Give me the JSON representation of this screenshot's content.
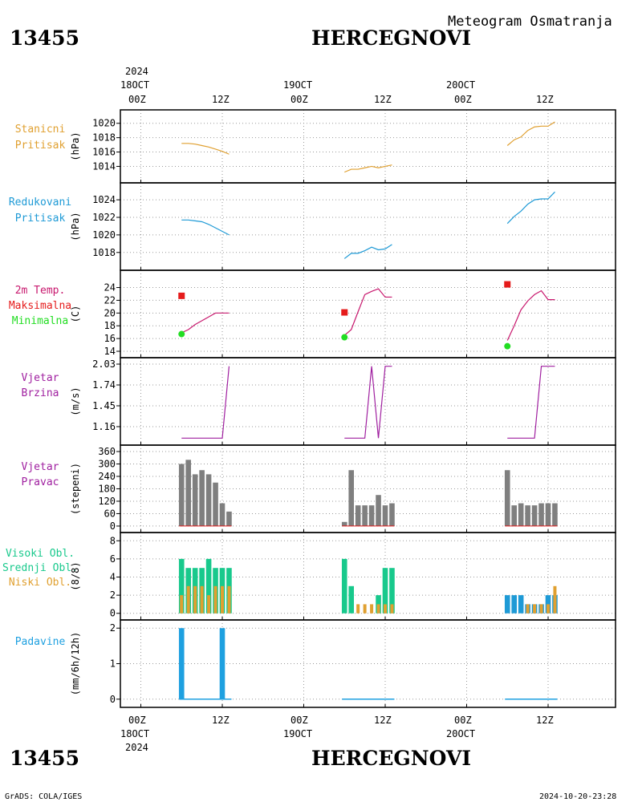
{
  "header": {
    "station_id": "13455",
    "station_name": "HERCEGNOVI",
    "subtitle": "Meteogram Osmatranja",
    "footer_left": "GrADS: COLA/IGES",
    "footer_right": "2024-10-20-23:28"
  },
  "time_axis": {
    "year": "2024",
    "days": [
      {
        "date": "18OCT",
        "hours": [
          "00Z",
          "12Z"
        ]
      },
      {
        "date": "19OCT",
        "hours": [
          "00Z",
          "12Z"
        ]
      },
      {
        "date": "20OCT",
        "hours": [
          "00Z",
          "12Z"
        ]
      }
    ]
  },
  "colors": {
    "pressure": "#e0a030",
    "reduced_pressure": "#1e9ad6",
    "temp": "#c8186e",
    "tmax": "#e51b1b",
    "tmin": "#22dd22",
    "wind": "#a020a0",
    "bars": "#7f7f7f",
    "high_cloud": "#18c98c",
    "mid_cloud": "#1e9ad6",
    "low_cloud": "#e0a030",
    "precip": "#1ea0e0"
  },
  "chart_data": [
    {
      "type": "line",
      "panel": "station_pressure",
      "label_lines": [
        "Stanicni",
        "Pritisak"
      ],
      "ylabel": "(hPa)",
      "yticks": [
        1014,
        1016,
        1018,
        1020
      ],
      "ylim": [
        1012.6,
        1021.2
      ],
      "x_hours": [
        9,
        10,
        11,
        12,
        13,
        14,
        15,
        16,
        17,
        18,
        19,
        20,
        21,
        22
      ],
      "segments": [
        {
          "x": [
            6,
            7,
            8,
            9,
            10,
            11,
            12,
            13
          ],
          "y": [
            1017.2,
            1017.2,
            1017.1,
            1016.9,
            1016.7,
            1016.4,
            1016.1,
            1015.7
          ]
        },
        {
          "x": [
            30,
            31,
            32,
            33,
            34,
            35,
            36,
            37
          ],
          "y": [
            1013.2,
            1013.6,
            1013.6,
            1013.8,
            1014.0,
            1013.8,
            1014.0,
            1014.2
          ]
        },
        {
          "x": [
            54,
            55,
            56,
            57,
            58,
            59,
            60,
            61
          ],
          "y": [
            1016.9,
            1017.7,
            1018.1,
            1019.0,
            1019.5,
            1019.6,
            1019.6,
            1020.2
          ]
        }
      ]
    },
    {
      "type": "line",
      "panel": "reduced_pressure",
      "label_lines": [
        "Redukovani",
        "Pritisak"
      ],
      "ylabel": "(hPa)",
      "yticks": [
        1018,
        1020,
        1022,
        1024
      ],
      "ylim": [
        1016.7,
        1025.2
      ],
      "segments": [
        {
          "x": [
            6,
            7,
            8,
            9,
            10,
            11,
            12,
            13
          ],
          "y": [
            1021.7,
            1021.7,
            1021.6,
            1021.5,
            1021.2,
            1020.8,
            1020.4,
            1020.0
          ]
        },
        {
          "x": [
            30,
            31,
            32,
            33,
            34,
            35,
            36,
            37
          ],
          "y": [
            1017.3,
            1017.9,
            1017.9,
            1018.2,
            1018.6,
            1018.3,
            1018.4,
            1018.9
          ]
        },
        {
          "x": [
            54,
            55,
            56,
            57,
            58,
            59,
            60,
            61
          ],
          "y": [
            1021.3,
            1022.1,
            1022.7,
            1023.5,
            1024.0,
            1024.1,
            1024.1,
            1024.9
          ]
        }
      ]
    },
    {
      "type": "line",
      "panel": "temperature",
      "label_lines": [
        "2m Temp.",
        "Maksimalna",
        "Minimalna"
      ],
      "ylabel": "(C)",
      "yticks": [
        14,
        16,
        18,
        20,
        22,
        24
      ],
      "ylim": [
        14,
        25.2
      ],
      "segments": [
        {
          "x": [
            6,
            7,
            8,
            9,
            10,
            11,
            12,
            13
          ],
          "y": [
            16.9,
            17.4,
            18.2,
            18.8,
            19.4,
            20.0,
            20.0,
            20.0
          ]
        },
        {
          "x": [
            30,
            31,
            32,
            33,
            34,
            35,
            36,
            37
          ],
          "y": [
            16.5,
            17.4,
            20.2,
            22.9,
            23.4,
            23.8,
            22.5,
            22.5
          ]
        },
        {
          "x": [
            54,
            55,
            56,
            57,
            58,
            59,
            60,
            61
          ],
          "y": [
            15.7,
            18.0,
            20.5,
            21.9,
            22.9,
            23.5,
            22.1,
            22.1
          ]
        }
      ],
      "tmax": [
        {
          "x": 6,
          "y": 22.7
        },
        {
          "x": 30,
          "y": 20.1
        },
        {
          "x": 54,
          "y": 24.5
        }
      ],
      "tmin": [
        {
          "x": 6,
          "y": 16.7
        },
        {
          "x": 30,
          "y": 16.2
        },
        {
          "x": 54,
          "y": 14.8
        }
      ]
    },
    {
      "type": "line",
      "panel": "wind_speed",
      "label_lines": [
        "Vjetar",
        "Brzina"
      ],
      "ylabel": "(m/s)",
      "yticks": [
        1.16,
        1.45,
        1.74,
        2.03
      ],
      "ylim": [
        0.97,
        2.03
      ],
      "segments": [
        {
          "x": [
            6,
            7,
            8,
            9,
            10,
            11,
            12,
            13
          ],
          "y": [
            1.0,
            1.0,
            1.0,
            1.0,
            1.0,
            1.0,
            1.0,
            2.0
          ]
        },
        {
          "x": [
            30,
            31,
            32,
            33,
            34,
            35,
            36,
            37
          ],
          "y": [
            1.0,
            1.0,
            1.0,
            1.0,
            2.0,
            1.0,
            2.0,
            2.0
          ]
        },
        {
          "x": [
            54,
            55,
            56,
            57,
            58,
            59,
            60,
            61
          ],
          "y": [
            1.0,
            1.0,
            1.0,
            1.0,
            1.0,
            2.0,
            2.0,
            2.0
          ]
        }
      ]
    },
    {
      "type": "bar",
      "panel": "wind_direction",
      "label_lines": [
        "Vjetar",
        "Pravac"
      ],
      "ylabel": "(stepeni)",
      "yticks": [
        0,
        60,
        120,
        180,
        240,
        300,
        360
      ],
      "ylim": [
        -8,
        360
      ],
      "bars": [
        {
          "x": 6,
          "y": 300
        },
        {
          "x": 7,
          "y": 320
        },
        {
          "x": 8,
          "y": 250
        },
        {
          "x": 9,
          "y": 270
        },
        {
          "x": 10,
          "y": 250
        },
        {
          "x": 11,
          "y": 210
        },
        {
          "x": 12,
          "y": 110
        },
        {
          "x": 13,
          "y": 70
        },
        {
          "x": 30,
          "y": 20
        },
        {
          "x": 31,
          "y": 270
        },
        {
          "x": 32,
          "y": 100
        },
        {
          "x": 33,
          "y": 100
        },
        {
          "x": 34,
          "y": 100
        },
        {
          "x": 35,
          "y": 150
        },
        {
          "x": 36,
          "y": 100
        },
        {
          "x": 37,
          "y": 110
        },
        {
          "x": 54,
          "y": 270
        },
        {
          "x": 55,
          "y": 100
        },
        {
          "x": 56,
          "y": 110
        },
        {
          "x": 57,
          "y": 100
        },
        {
          "x": 58,
          "y": 100
        },
        {
          "x": 59,
          "y": 110
        },
        {
          "x": 60,
          "y": 110
        },
        {
          "x": 61,
          "y": 110
        }
      ]
    },
    {
      "type": "bar",
      "panel": "clouds",
      "label_lines": [
        "Visoki Obl.",
        "Srednji Obl.",
        "Niski Obl."
      ],
      "ylabel": "(8/8)",
      "yticks": [
        0,
        2,
        4,
        6,
        8
      ],
      "ylim": [
        -0.2,
        8.2
      ],
      "high": [
        {
          "x": 6,
          "y": 6
        },
        {
          "x": 7,
          "y": 5
        },
        {
          "x": 8,
          "y": 5
        },
        {
          "x": 9,
          "y": 5
        },
        {
          "x": 10,
          "y": 6
        },
        {
          "x": 11,
          "y": 5
        },
        {
          "x": 12,
          "y": 5
        },
        {
          "x": 13,
          "y": 5
        },
        {
          "x": 30,
          "y": 6
        },
        {
          "x": 31,
          "y": 3
        },
        {
          "x": 35,
          "y": 2
        },
        {
          "x": 36,
          "y": 5
        },
        {
          "x": 37,
          "y": 5
        }
      ],
      "mid": [
        {
          "x": 54,
          "y": 2
        },
        {
          "x": 55,
          "y": 2
        },
        {
          "x": 56,
          "y": 2
        },
        {
          "x": 57,
          "y": 1
        },
        {
          "x": 58,
          "y": 1
        },
        {
          "x": 59,
          "y": 1
        },
        {
          "x": 60,
          "y": 2
        },
        {
          "x": 61,
          "y": 2
        }
      ],
      "low": [
        {
          "x": 6,
          "y": 2
        },
        {
          "x": 7,
          "y": 3
        },
        {
          "x": 8,
          "y": 3
        },
        {
          "x": 9,
          "y": 3
        },
        {
          "x": 10,
          "y": 2
        },
        {
          "x": 11,
          "y": 3
        },
        {
          "x": 12,
          "y": 3
        },
        {
          "x": 13,
          "y": 3
        },
        {
          "x": 32,
          "y": 1
        },
        {
          "x": 33,
          "y": 1
        },
        {
          "x": 34,
          "y": 1
        },
        {
          "x": 35,
          "y": 1
        },
        {
          "x": 36,
          "y": 1
        },
        {
          "x": 37,
          "y": 1
        },
        {
          "x": 57,
          "y": 1
        },
        {
          "x": 58,
          "y": 1
        },
        {
          "x": 59,
          "y": 1
        },
        {
          "x": 60,
          "y": 1
        },
        {
          "x": 61,
          "y": 3
        }
      ]
    },
    {
      "type": "bar",
      "panel": "precipitation",
      "label_lines": [
        "Padavine"
      ],
      "ylabel": "(mm/6h/12h)",
      "yticks": [
        0,
        1,
        2
      ],
      "ylim": [
        -0.05,
        2.05
      ],
      "bars": [
        {
          "x": 6,
          "y": 2.0
        },
        {
          "x": 12,
          "y": 2.0
        }
      ],
      "trace": [
        {
          "x": [
            6,
            13
          ]
        },
        {
          "x": [
            30,
            37
          ]
        },
        {
          "x": [
            54,
            61
          ]
        }
      ]
    }
  ]
}
